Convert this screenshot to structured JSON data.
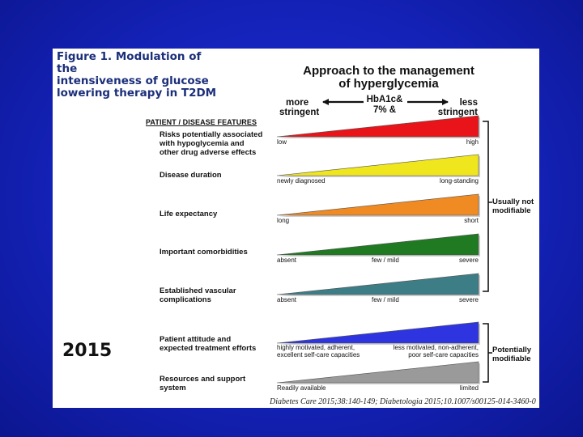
{
  "caption": [
    "Figure 1. Modulation of the",
    "intensiveness of glucose",
    "lowering therapy in T2DM"
  ],
  "year": "2015",
  "title": [
    "Approach to the management",
    "of hyperglycemia"
  ],
  "header": {
    "more": [
      "more",
      "stringent"
    ],
    "hba1c": [
      "HbA1c&",
      "7% &"
    ],
    "less": [
      "less",
      "stringent"
    ]
  },
  "features_header": "PATIENT / DISEASE FEATURES",
  "rows": [
    {
      "label": [
        "Risks potentially associated",
        "with hypoglycemia and",
        "other drug adverse effects"
      ],
      "left": "low",
      "mid": "",
      "right": "high",
      "color": "#e8141a"
    },
    {
      "label": [
        "Disease duration"
      ],
      "left": "newly diagnosed",
      "mid": "",
      "right": "long-standing",
      "color": "#f0e61e"
    },
    {
      "label": [
        "Life expectancy"
      ],
      "left": "long",
      "mid": "",
      "right": "short",
      "color": "#f08a22"
    },
    {
      "label": [
        "Important comorbidities"
      ],
      "left": "absent",
      "mid": "few / mild",
      "right": "severe",
      "color": "#1f7a22"
    },
    {
      "label": [
        "Established vascular",
        "complications"
      ],
      "left": "absent",
      "mid": "few / mild",
      "right": "severe",
      "color": "#3d7d86"
    },
    {
      "label": [
        "Patient attitude and",
        "expected treatment efforts"
      ],
      "left": "highly motivated, adherent,\nexcellent self-care capacities",
      "mid": "",
      "right": "less motivated, non-adherent,\npoor self-care capacities",
      "color": "#2e35e0"
    },
    {
      "label": [
        "Resources and support",
        "system"
      ],
      "left": "Readily available",
      "mid": "",
      "right": "limited",
      "color": "#9a9a9a"
    }
  ],
  "groups": [
    {
      "label": [
        "Usually not",
        "modifiable"
      ]
    },
    {
      "label": [
        "Potentially",
        "modifiable"
      ]
    }
  ],
  "reference": "Diabetes Care 2015;38:140-149; Diabetologia 2015;10.1007/s00125-014-3460-0"
}
